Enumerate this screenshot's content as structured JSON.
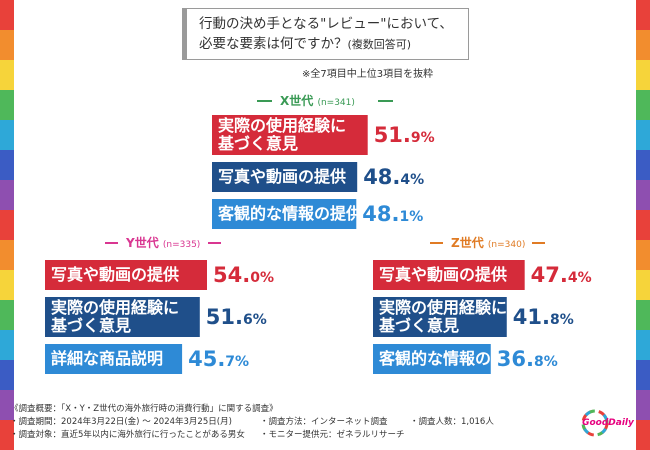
{
  "colors": {
    "x_gen": "#3a9a55",
    "y_gen": "#d93691",
    "z_gen": "#e07b24",
    "bar_red": "#d52b3a",
    "bar_navy": "#1f4f8a",
    "bar_blue": "#2e8ad6",
    "stripes": [
      "#e8413a",
      "#f28d2e",
      "#f6d43a",
      "#4fb85a",
      "#2ea8d8",
      "#3b5cc4",
      "#8e4fb0"
    ]
  },
  "header": {
    "title_line1": "行動の決め手となる\"レビュー\"において、",
    "title_line2": "必要な要素は何ですか？",
    "title_suffix": "(複数回答可)",
    "note": "※全7項目中上位3項目を抜粋"
  },
  "chart_data": [
    {
      "type": "bar",
      "title": "X世代",
      "n_label": "(n=341)",
      "categories": [
        "実際の使用経験に基づく意見",
        "写真や動画の提供",
        "客観的な情報の提供"
      ],
      "label_lines": [
        [
          "実際の使用経験に",
          "基づく意見"
        ],
        [
          "写真や動画の提供"
        ],
        [
          "客観的な情報の提供"
        ]
      ],
      "values": [
        51.9,
        48.4,
        48.1
      ],
      "value_main": [
        "51.",
        "48.",
        "48."
      ],
      "value_dec": [
        "9%",
        "4%",
        "1%"
      ],
      "xlim": [
        0,
        60
      ]
    },
    {
      "type": "bar",
      "title": "Y世代",
      "n_label": "(n=335)",
      "categories": [
        "写真や動画の提供",
        "実際の使用経験に基づく意見",
        "詳細な商品説明"
      ],
      "label_lines": [
        [
          "写真や動画の提供"
        ],
        [
          "実際の使用経験に",
          "基づく意見"
        ],
        [
          "詳細な商品説明"
        ]
      ],
      "values": [
        54.0,
        51.6,
        45.7
      ],
      "value_main": [
        "54.",
        "51.",
        "45."
      ],
      "value_dec": [
        "0%",
        "6%",
        "7%"
      ],
      "xlim": [
        0,
        60
      ]
    },
    {
      "type": "bar",
      "title": "Z世代",
      "n_label": "(n=340)",
      "categories": [
        "写真や動画の提供",
        "実際の使用経験に基づく意見",
        "客観的な情報の提供"
      ],
      "label_lines": [
        [
          "写真や動画の提供"
        ],
        [
          "実際の使用経験に",
          "基づく意見"
        ],
        [
          "客観的な情報の提供"
        ]
      ],
      "values": [
        47.4,
        41.8,
        36.8
      ],
      "value_main": [
        "47.",
        "41.",
        "36."
      ],
      "value_dec": [
        "4%",
        "8%",
        "8%"
      ],
      "xlim": [
        0,
        60
      ]
    }
  ],
  "footer": {
    "summary": "《調査概要：「X・Y・Z世代の海外旅行時の消費行動」に関する調査》",
    "period": "・調査期間：2024年3月22日(金) 〜 2024年3月25日(月)",
    "method": "・調査方法：インターネット調査",
    "count": "・調査人数：1,016人",
    "target": "・調査対象：直近5年以内に海外旅行に行ったことがある男女",
    "provider": "・モニター提供元：ゼネラルリサーチ"
  },
  "logo": {
    "text": "GoodDaily"
  }
}
